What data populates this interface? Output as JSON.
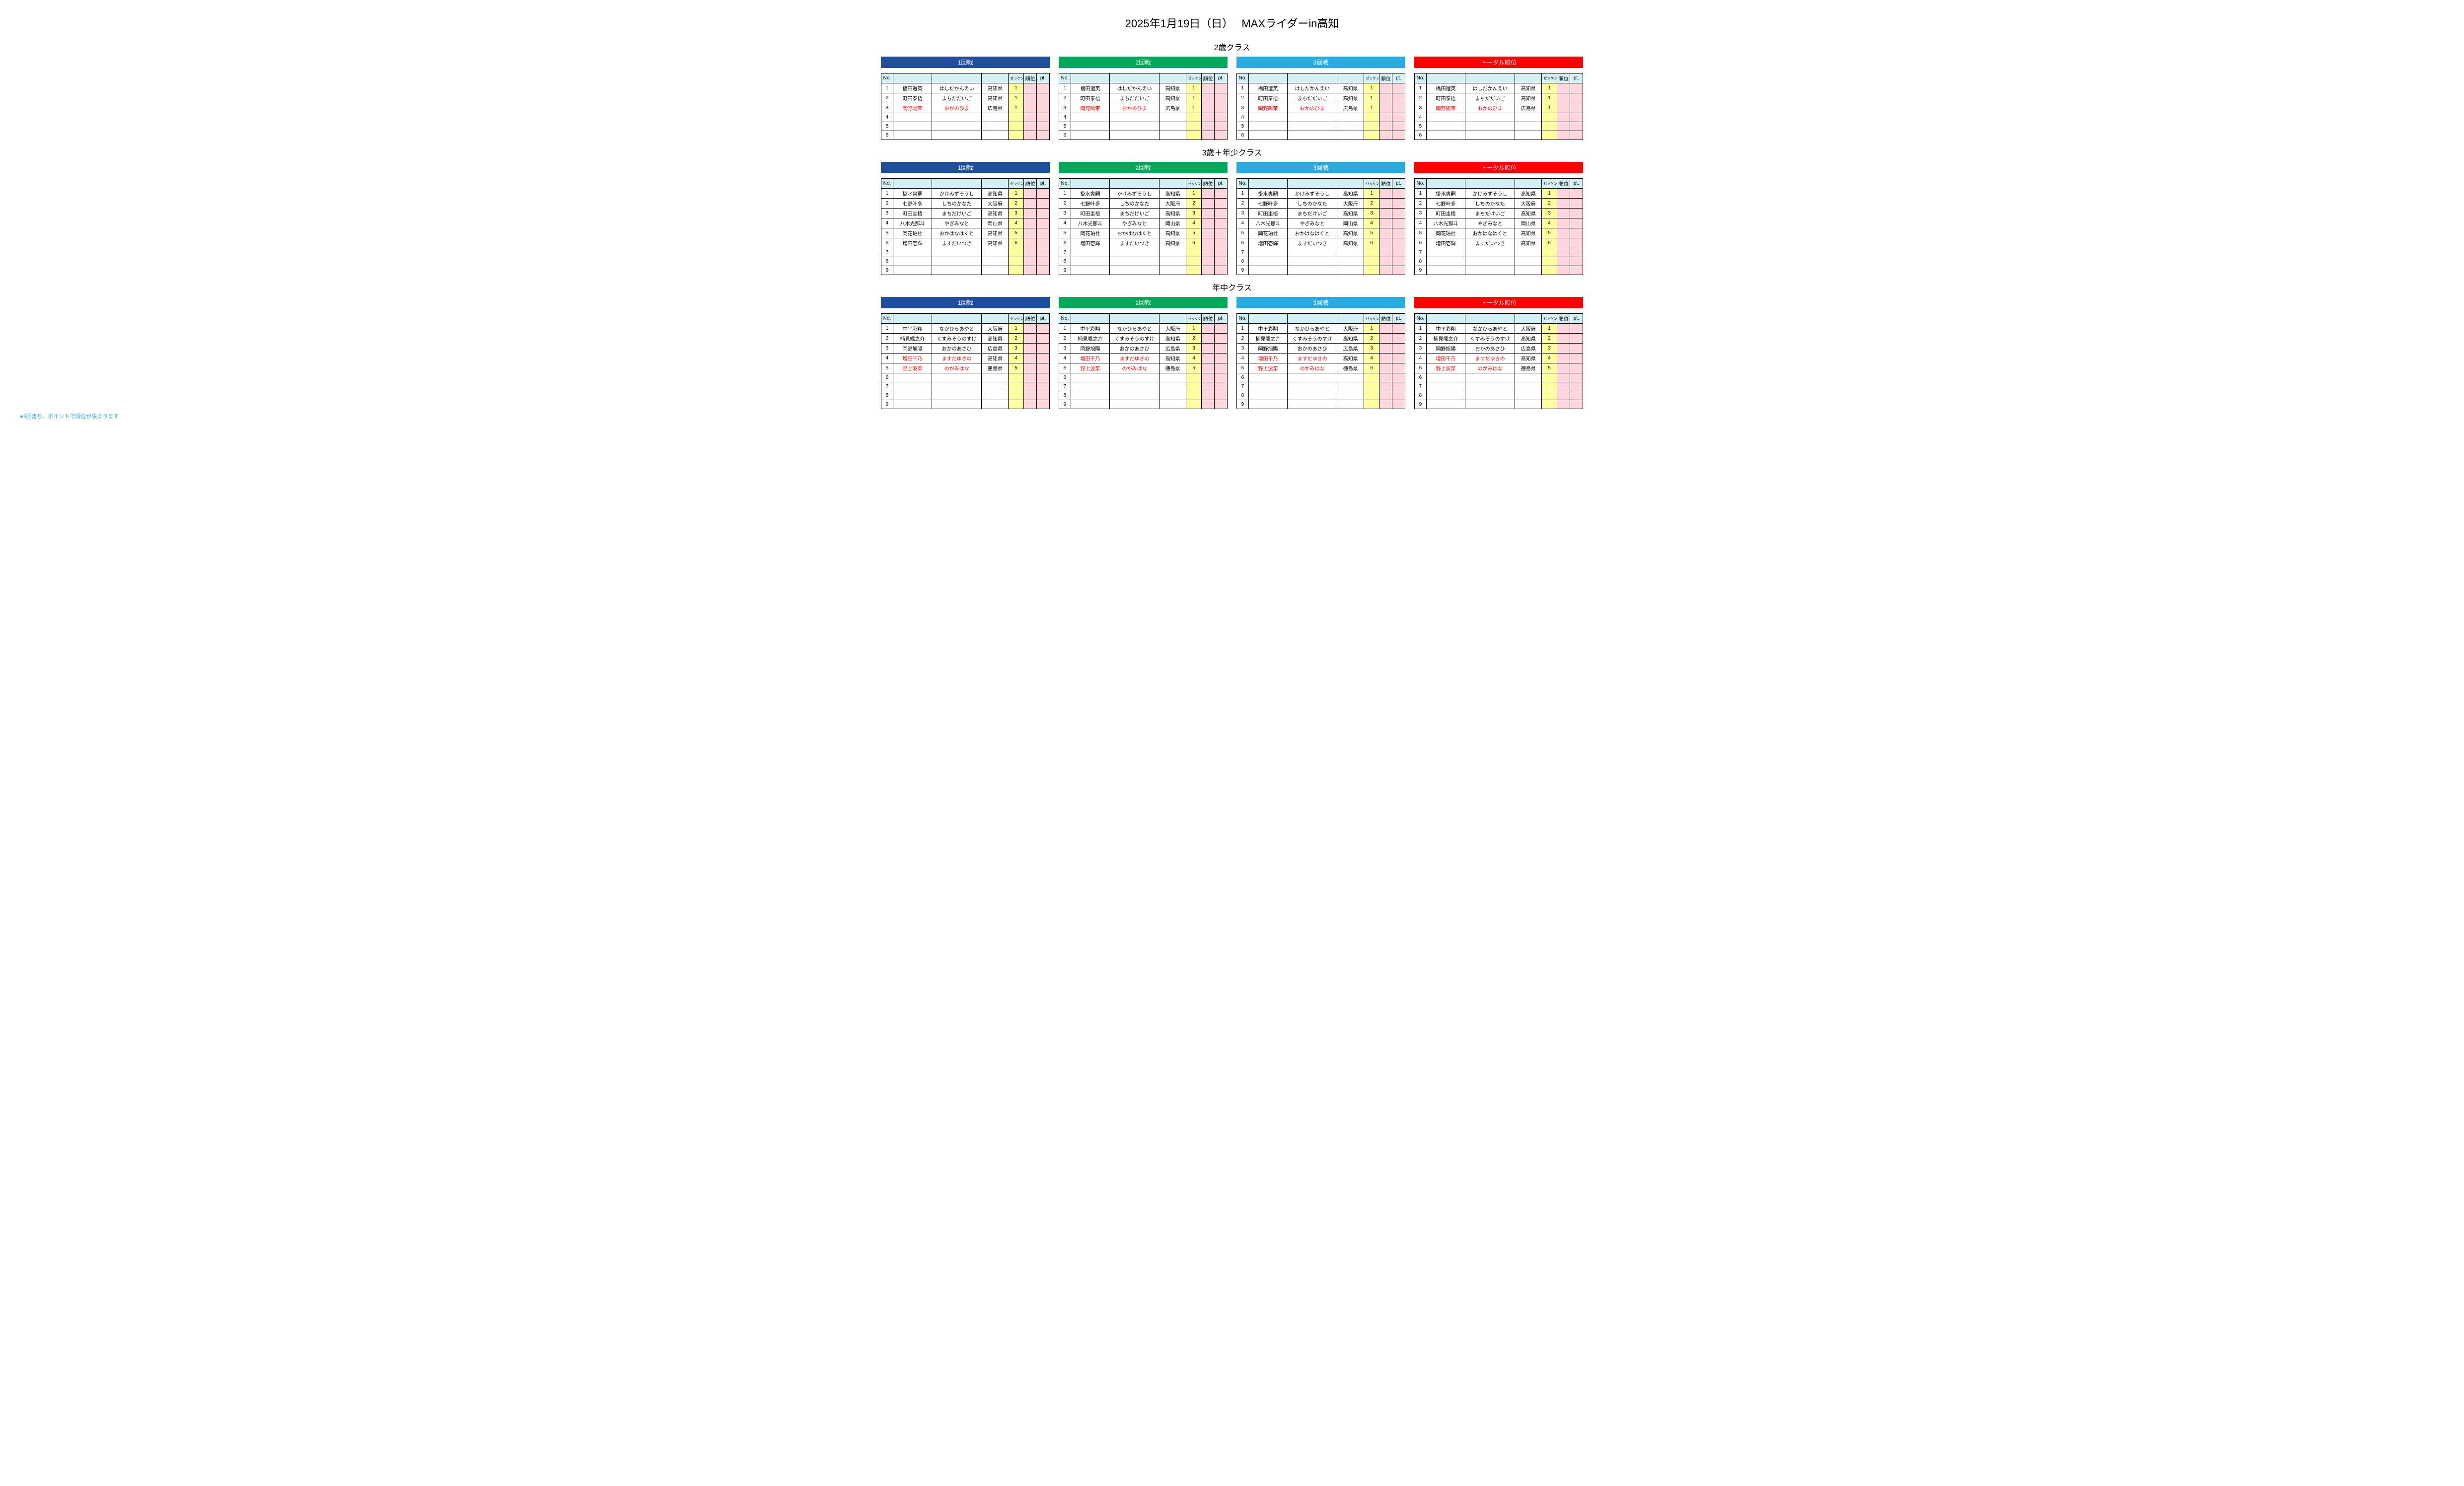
{
  "title": "2025年1月19日（日）　 MAXライダーin高知",
  "footnote": "●3回走り、ポイントで順位が決まります",
  "heat_labels": {
    "r1": "1回戦",
    "r2": "2回戦",
    "r3": "3回戦",
    "total": "トータル順位"
  },
  "col_headers": {
    "no": "No.",
    "name": "",
    "kana": "",
    "pref": "",
    "bib": "ゼッケン",
    "rank": "順位",
    "pt": "pt."
  },
  "colors": {
    "header_navy": "#1f4e9c",
    "header_green": "#00a65a",
    "header_sky": "#29abe2",
    "header_red": "#ff0000",
    "th_bg": "#d4f0f5",
    "bib_bg": "#ffff9e",
    "pink_bg": "#ffd6dc",
    "red_text": "#ff0000",
    "footnote": "#29abe2"
  },
  "classes": [
    {
      "title": "2歳クラス",
      "row_count": 6,
      "entries": [
        {
          "no": 1,
          "name": "橋田還英",
          "kana": "はしだかんえい",
          "pref": "高知県",
          "bib": "1",
          "red": false
        },
        {
          "no": 2,
          "name": "町田泰梧",
          "kana": "まちだだいご",
          "pref": "高知県",
          "bib": "1",
          "red": false
        },
        {
          "no": 3,
          "name": "岡野陽茉",
          "kana": "おかのひま",
          "pref": "広島県",
          "bib": "1",
          "red": true
        }
      ]
    },
    {
      "title": "3歳＋年少クラス",
      "row_count": 9,
      "entries": [
        {
          "no": 1,
          "name": "掛水爽嗣",
          "kana": "かけみずそうし",
          "pref": "高知県",
          "bib": "1",
          "red": false
        },
        {
          "no": 2,
          "name": "七野叶多",
          "kana": "しちのかなた",
          "pref": "大阪府",
          "bib": "2",
          "red": false
        },
        {
          "no": 3,
          "name": "町田圭梧",
          "kana": "まちだけいご",
          "pref": "高知県",
          "bib": "3",
          "red": false
        },
        {
          "no": 4,
          "name": "八木光那斗",
          "kana": "やぎみなと",
          "pref": "岡山県",
          "bib": "4",
          "red": false
        },
        {
          "no": 5,
          "name": "岡花珀杜",
          "kana": "おかはなはくと",
          "pref": "高知県",
          "bib": "5",
          "red": false
        },
        {
          "no": 6,
          "name": "増田壱輝",
          "kana": "ますだいつき",
          "pref": "高知県",
          "bib": "6",
          "red": false
        }
      ]
    },
    {
      "title": "年中クラス",
      "row_count": 9,
      "entries": [
        {
          "no": 1,
          "name": "中平彩翔",
          "kana": "なかひらあやと",
          "pref": "大阪府",
          "bib": "1",
          "red": false
        },
        {
          "no": 2,
          "name": "楠見颯之介",
          "kana": "くすみそうのすけ",
          "pref": "高知県",
          "bib": "2",
          "red": false
        },
        {
          "no": 3,
          "name": "岡野旭陽",
          "kana": "おかのあさひ",
          "pref": "広島県",
          "bib": "3",
          "red": false
        },
        {
          "no": 4,
          "name": "増田千乃",
          "kana": "ますだゆきの",
          "pref": "高知県",
          "bib": "4",
          "red": true
        },
        {
          "no": 5,
          "name": "野上波菜",
          "kana": "のがみはな",
          "pref": "徳島県",
          "bib": "5",
          "red": true
        }
      ]
    }
  ]
}
